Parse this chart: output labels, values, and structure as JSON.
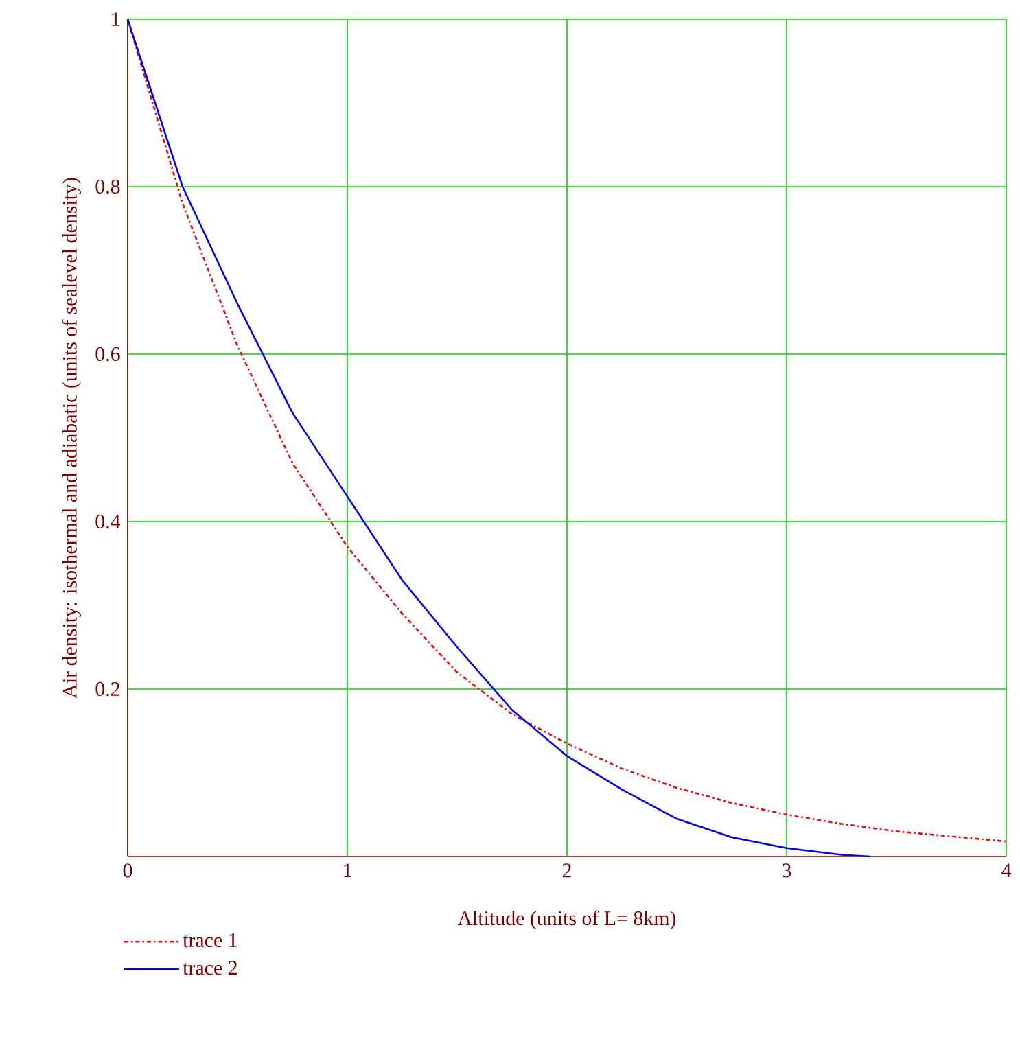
{
  "chart_data": {
    "type": "line",
    "xlabel": "Altitude (units of L= 8km)",
    "ylabel": "Air density: isothermal and adiabatic (units of sealevel density)",
    "xlim": [
      0,
      4
    ],
    "ylim": [
      0,
      1
    ],
    "xticks": [
      0,
      1,
      2,
      3,
      4
    ],
    "yticks": [
      0.2,
      0.4,
      0.6,
      0.8,
      1
    ],
    "grid": true,
    "legend": "bottom left",
    "series": [
      {
        "name": "trace 1",
        "color": "#ff0000",
        "line_style": "dashdot",
        "x": [
          0,
          0.25,
          0.5,
          0.75,
          1,
          1.25,
          1.5,
          1.75,
          2,
          2.25,
          2.5,
          2.75,
          3,
          3.25,
          3.5,
          3.75,
          4
        ],
        "values": [
          1,
          0.78,
          0.61,
          0.47,
          0.37,
          0.29,
          0.22,
          0.17,
          0.135,
          0.105,
          0.082,
          0.064,
          0.05,
          0.039,
          0.03,
          0.024,
          0.018
        ]
      },
      {
        "name": "trace 2",
        "color": "#0000ff",
        "line_style": "solid",
        "x": [
          0,
          0.25,
          0.5,
          0.75,
          1,
          1.25,
          1.5,
          1.75,
          2,
          2.25,
          2.5,
          2.75,
          3,
          3.25,
          3.38
        ],
        "values": [
          1,
          0.8,
          0.66,
          0.53,
          0.43,
          0.33,
          0.25,
          0.175,
          0.12,
          0.08,
          0.045,
          0.023,
          0.01,
          0.002,
          0
        ]
      }
    ]
  }
}
